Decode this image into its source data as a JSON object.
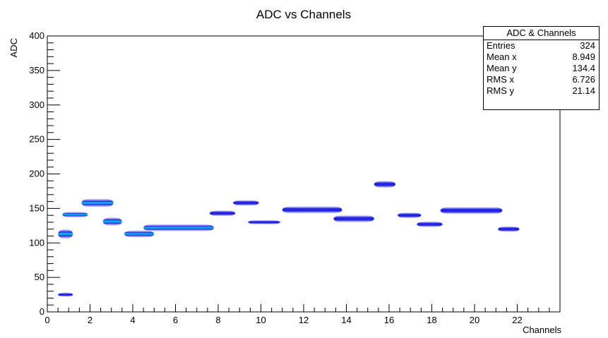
{
  "chart_data": {
    "type": "heatmap",
    "title": "ADC vs Channels",
    "xlabel": "Channels",
    "ylabel": "ADC",
    "xlim": [
      0,
      24
    ],
    "ylim": [
      0,
      400
    ],
    "x_ticks": [
      "0",
      "2",
      "4",
      "6",
      "8",
      "10",
      "12",
      "14",
      "16",
      "18",
      "20",
      "22"
    ],
    "y_ticks": [
      "0",
      "50",
      "100",
      "150",
      "200",
      "250",
      "300",
      "350",
      "400"
    ],
    "colors": {
      "low": "#b8b8f8",
      "mid": "#2020e0",
      "high": "#00d8e8",
      "frame": "#000000"
    },
    "clusters": [
      {
        "x0": 0.5,
        "x1": 1.2,
        "y": 113,
        "dy": 7,
        "peak": 0.9
      },
      {
        "x0": 0.5,
        "x1": 1.2,
        "y": 25,
        "dy": 3,
        "peak": 0.2
      },
      {
        "x0": 0.7,
        "x1": 1.9,
        "y": 141,
        "dy": 4,
        "peak": 0.9
      },
      {
        "x0": 1.6,
        "x1": 3.1,
        "y": 158,
        "dy": 6,
        "peak": 1.0
      },
      {
        "x0": 2.6,
        "x1": 3.5,
        "y": 131,
        "dy": 6,
        "peak": 1.0
      },
      {
        "x0": 3.6,
        "x1": 5.0,
        "y": 113,
        "dy": 5,
        "peak": 0.95
      },
      {
        "x0": 4.5,
        "x1": 7.8,
        "y": 122,
        "dy": 5,
        "peak": 1.0
      },
      {
        "x0": 7.6,
        "x1": 8.8,
        "y": 143,
        "dy": 4,
        "peak": 0.8
      },
      {
        "x0": 8.7,
        "x1": 9.9,
        "y": 158,
        "dy": 4,
        "peak": 0.8
      },
      {
        "x0": 9.4,
        "x1": 10.9,
        "y": 130,
        "dy": 3,
        "peak": 0.7
      },
      {
        "x0": 11.0,
        "x1": 13.8,
        "y": 148,
        "dy": 5,
        "peak": 0.85
      },
      {
        "x0": 13.4,
        "x1": 15.3,
        "y": 135,
        "dy": 5,
        "peak": 0.8
      },
      {
        "x0": 15.3,
        "x1": 16.3,
        "y": 185,
        "dy": 5,
        "peak": 0.8
      },
      {
        "x0": 16.4,
        "x1": 17.5,
        "y": 140,
        "dy": 4,
        "peak": 0.75
      },
      {
        "x0": 17.3,
        "x1": 18.5,
        "y": 127,
        "dy": 4,
        "peak": 0.75
      },
      {
        "x0": 18.4,
        "x1": 21.3,
        "y": 147,
        "dy": 5,
        "peak": 0.85
      },
      {
        "x0": 21.1,
        "x1": 22.1,
        "y": 120,
        "dy": 4,
        "peak": 0.8
      }
    ]
  },
  "stats": {
    "title": "ADC & Channels",
    "rows": [
      {
        "label": "Entries",
        "value": "324"
      },
      {
        "label": "Mean x",
        "value": "8.949"
      },
      {
        "label": "Mean y",
        "value": "134.4"
      },
      {
        "label": "RMS x",
        "value": "6.726"
      },
      {
        "label": "RMS y",
        "value": "21.14"
      }
    ]
  }
}
